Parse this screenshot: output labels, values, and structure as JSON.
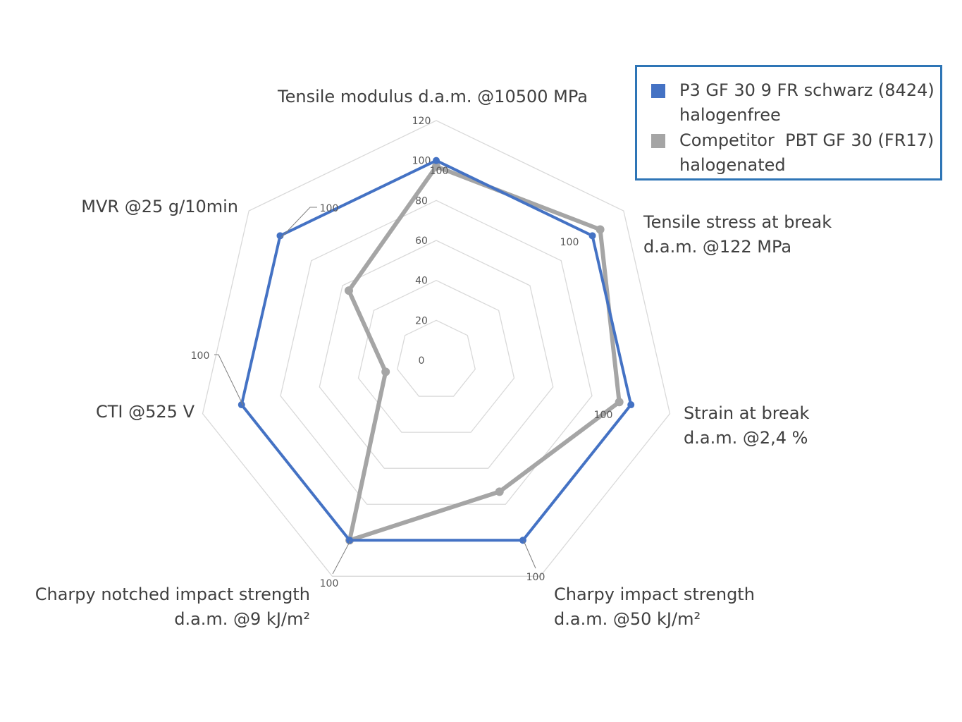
{
  "chart_data": {
    "type": "radar",
    "title": "",
    "axes": [
      "Tensile modulus d.a.m. @10500 MPa",
      "Tensile stress at break\nd.a.m. @122 MPa",
      "Strain at break\nd.a.m. @2,4 %",
      "Charpy impact strength\nd.a.m. @50 kJ/m²",
      "Charpy notched impact strength\nd.a.m. @9 kJ/m²",
      "CTI @525 V",
      "MVR  @25 g/10min"
    ],
    "rlim": [
      0,
      120
    ],
    "ticks": [
      "0",
      "20",
      "40",
      "60",
      "80",
      "100",
      "120"
    ],
    "legend_position": "top-right",
    "series": [
      {
        "name": "P3 GF 30 9 FR schwarz (8424)\nhalogenfree",
        "color": "#4472c4",
        "values": [
          100,
          100,
          100,
          100,
          100,
          100,
          100
        ],
        "data_labels": [
          "100",
          "100",
          "100",
          "100",
          "100",
          "100",
          "100"
        ]
      },
      {
        "name": "Competitor  PBT GF 30 (FR17)\nhalogenated",
        "color": "#a5a5a5",
        "values": [
          97,
          105,
          94,
          73,
          100,
          26,
          56
        ]
      }
    ]
  }
}
